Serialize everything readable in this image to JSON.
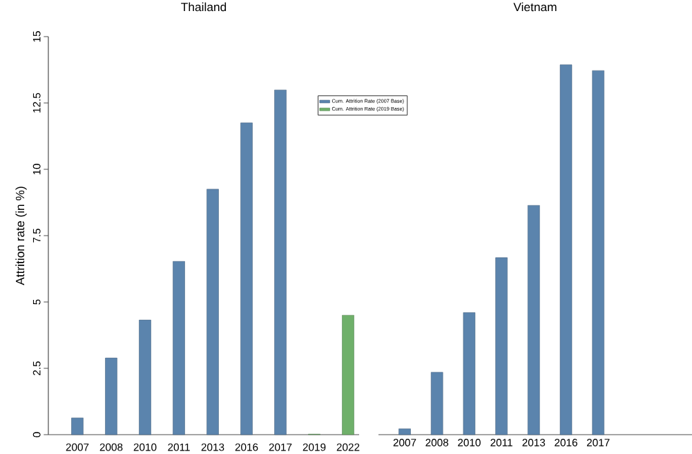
{
  "chart_data": [
    {
      "type": "bar",
      "title": "Thailand",
      "ylabel": "Attrition rate (in %)",
      "categories": [
        "2007",
        "2008",
        "2010",
        "2011",
        "2013",
        "2016",
        "2017",
        "2019",
        "2022"
      ],
      "series": [
        {
          "name": "Cum. Attrition Rate (2007 Base)",
          "color": "#5b84ad",
          "values": [
            0.63,
            2.89,
            4.32,
            6.53,
            9.25,
            11.75,
            12.99,
            null,
            null
          ]
        },
        {
          "name": "Cum. Attrition Rate (2019 Base)",
          "color": "#6fb06a",
          "values": [
            null,
            null,
            null,
            null,
            null,
            null,
            null,
            0.02,
            4.5
          ]
        }
      ],
      "ylim": [
        0,
        15
      ],
      "yticks": [
        0,
        2.5,
        5,
        7.5,
        10,
        12.5,
        15
      ],
      "legend": "top right"
    },
    {
      "type": "bar",
      "title": "Vietnam",
      "categories": [
        "2007",
        "2008",
        "2010",
        "2011",
        "2013",
        "2016",
        "2017"
      ],
      "series": [
        {
          "color": "#5b84ad",
          "values": [
            0.22,
            2.35,
            4.6,
            6.67,
            8.64,
            13.94,
            13.72
          ]
        }
      ],
      "ylim": [
        0,
        15
      ],
      "tick_labels": "x"
    }
  ]
}
